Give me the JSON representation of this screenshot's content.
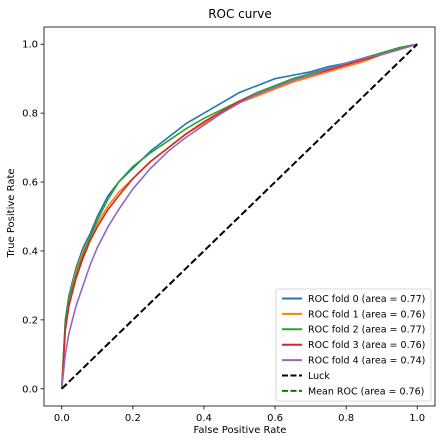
{
  "chart_data": {
    "type": "line",
    "title": "ROC curve",
    "xlabel": "False Positive Rate",
    "ylabel": "True Positive Rate",
    "xlim": [
      -0.05,
      1.05
    ],
    "ylim": [
      -0.05,
      1.05
    ],
    "xticks": [
      0.0,
      0.2,
      0.4,
      0.6,
      0.8,
      1.0
    ],
    "yticks": [
      0.0,
      0.2,
      0.4,
      0.6,
      0.8,
      1.0
    ],
    "tick_labels": [
      "0.0",
      "0.2",
      "0.4",
      "0.6",
      "0.8",
      "1.0"
    ],
    "grid": false,
    "legend_position": "lower-right",
    "series": [
      {
        "name": "ROC fold 0 (area = 0.77)",
        "color": "#1f77b4",
        "style": "solid",
        "x": [
          0,
          0.01,
          0.02,
          0.04,
          0.06,
          0.08,
          0.1,
          0.13,
          0.16,
          0.2,
          0.25,
          0.3,
          0.35,
          0.4,
          0.45,
          0.5,
          0.55,
          0.6,
          0.65,
          0.7,
          0.75,
          0.8,
          0.85,
          0.9,
          0.95,
          1.0
        ],
        "y": [
          0,
          0.2,
          0.27,
          0.35,
          0.41,
          0.45,
          0.5,
          0.56,
          0.6,
          0.64,
          0.69,
          0.73,
          0.77,
          0.8,
          0.83,
          0.86,
          0.88,
          0.9,
          0.91,
          0.92,
          0.935,
          0.945,
          0.96,
          0.975,
          0.99,
          1.0
        ]
      },
      {
        "name": "ROC fold 1 (area = 0.76)",
        "color": "#ff7f0e",
        "style": "solid",
        "x": [
          0,
          0.01,
          0.02,
          0.04,
          0.06,
          0.08,
          0.1,
          0.13,
          0.16,
          0.2,
          0.25,
          0.3,
          0.35,
          0.4,
          0.45,
          0.5,
          0.55,
          0.6,
          0.65,
          0.7,
          0.75,
          0.8,
          0.85,
          0.9,
          0.95,
          1.0
        ],
        "y": [
          0,
          0.18,
          0.26,
          0.34,
          0.4,
          0.44,
          0.48,
          0.53,
          0.57,
          0.61,
          0.66,
          0.7,
          0.74,
          0.77,
          0.8,
          0.83,
          0.85,
          0.87,
          0.89,
          0.905,
          0.92,
          0.935,
          0.95,
          0.97,
          0.985,
          1.0
        ]
      },
      {
        "name": "ROC fold 2 (area = 0.77)",
        "color": "#2ca02c",
        "style": "solid",
        "x": [
          0,
          0.01,
          0.02,
          0.04,
          0.06,
          0.08,
          0.1,
          0.13,
          0.16,
          0.2,
          0.25,
          0.3,
          0.35,
          0.4,
          0.45,
          0.5,
          0.55,
          0.6,
          0.65,
          0.7,
          0.75,
          0.8,
          0.85,
          0.9,
          0.95,
          1.0
        ],
        "y": [
          0,
          0.19,
          0.26,
          0.33,
          0.39,
          0.44,
          0.49,
          0.55,
          0.6,
          0.645,
          0.685,
          0.72,
          0.755,
          0.785,
          0.81,
          0.835,
          0.86,
          0.88,
          0.9,
          0.915,
          0.93,
          0.945,
          0.96,
          0.975,
          0.99,
          1.0
        ]
      },
      {
        "name": "ROC fold 3 (area = 0.76)",
        "color": "#d62728",
        "style": "solid",
        "x": [
          0,
          0.01,
          0.02,
          0.04,
          0.06,
          0.08,
          0.1,
          0.13,
          0.16,
          0.2,
          0.25,
          0.3,
          0.35,
          0.4,
          0.45,
          0.5,
          0.55,
          0.6,
          0.65,
          0.7,
          0.75,
          0.8,
          0.85,
          0.9,
          0.95,
          1.0
        ],
        "y": [
          0,
          0.17,
          0.24,
          0.32,
          0.38,
          0.43,
          0.47,
          0.52,
          0.56,
          0.61,
          0.66,
          0.7,
          0.74,
          0.775,
          0.805,
          0.835,
          0.855,
          0.875,
          0.895,
          0.91,
          0.925,
          0.94,
          0.955,
          0.97,
          0.985,
          1.0
        ]
      },
      {
        "name": "ROC fold 4 (area = 0.74)",
        "color": "#9467bd",
        "style": "solid",
        "x": [
          0,
          0.01,
          0.02,
          0.04,
          0.06,
          0.08,
          0.1,
          0.13,
          0.16,
          0.2,
          0.25,
          0.3,
          0.35,
          0.4,
          0.45,
          0.5,
          0.55,
          0.6,
          0.65,
          0.7,
          0.75,
          0.8,
          0.85,
          0.9,
          0.95,
          1.0
        ],
        "y": [
          0,
          0.1,
          0.16,
          0.24,
          0.3,
          0.36,
          0.41,
          0.47,
          0.52,
          0.58,
          0.64,
          0.69,
          0.73,
          0.765,
          0.8,
          0.83,
          0.855,
          0.875,
          0.895,
          0.91,
          0.93,
          0.945,
          0.96,
          0.97,
          0.985,
          1.0
        ]
      },
      {
        "name": "Luck",
        "color": "#000000",
        "style": "dashed",
        "x": [
          0,
          1
        ],
        "y": [
          0,
          1
        ]
      },
      {
        "name": "Mean ROC (area = 0.76)",
        "color": "#008000",
        "style": "dashed",
        "x": [],
        "y": []
      }
    ]
  }
}
